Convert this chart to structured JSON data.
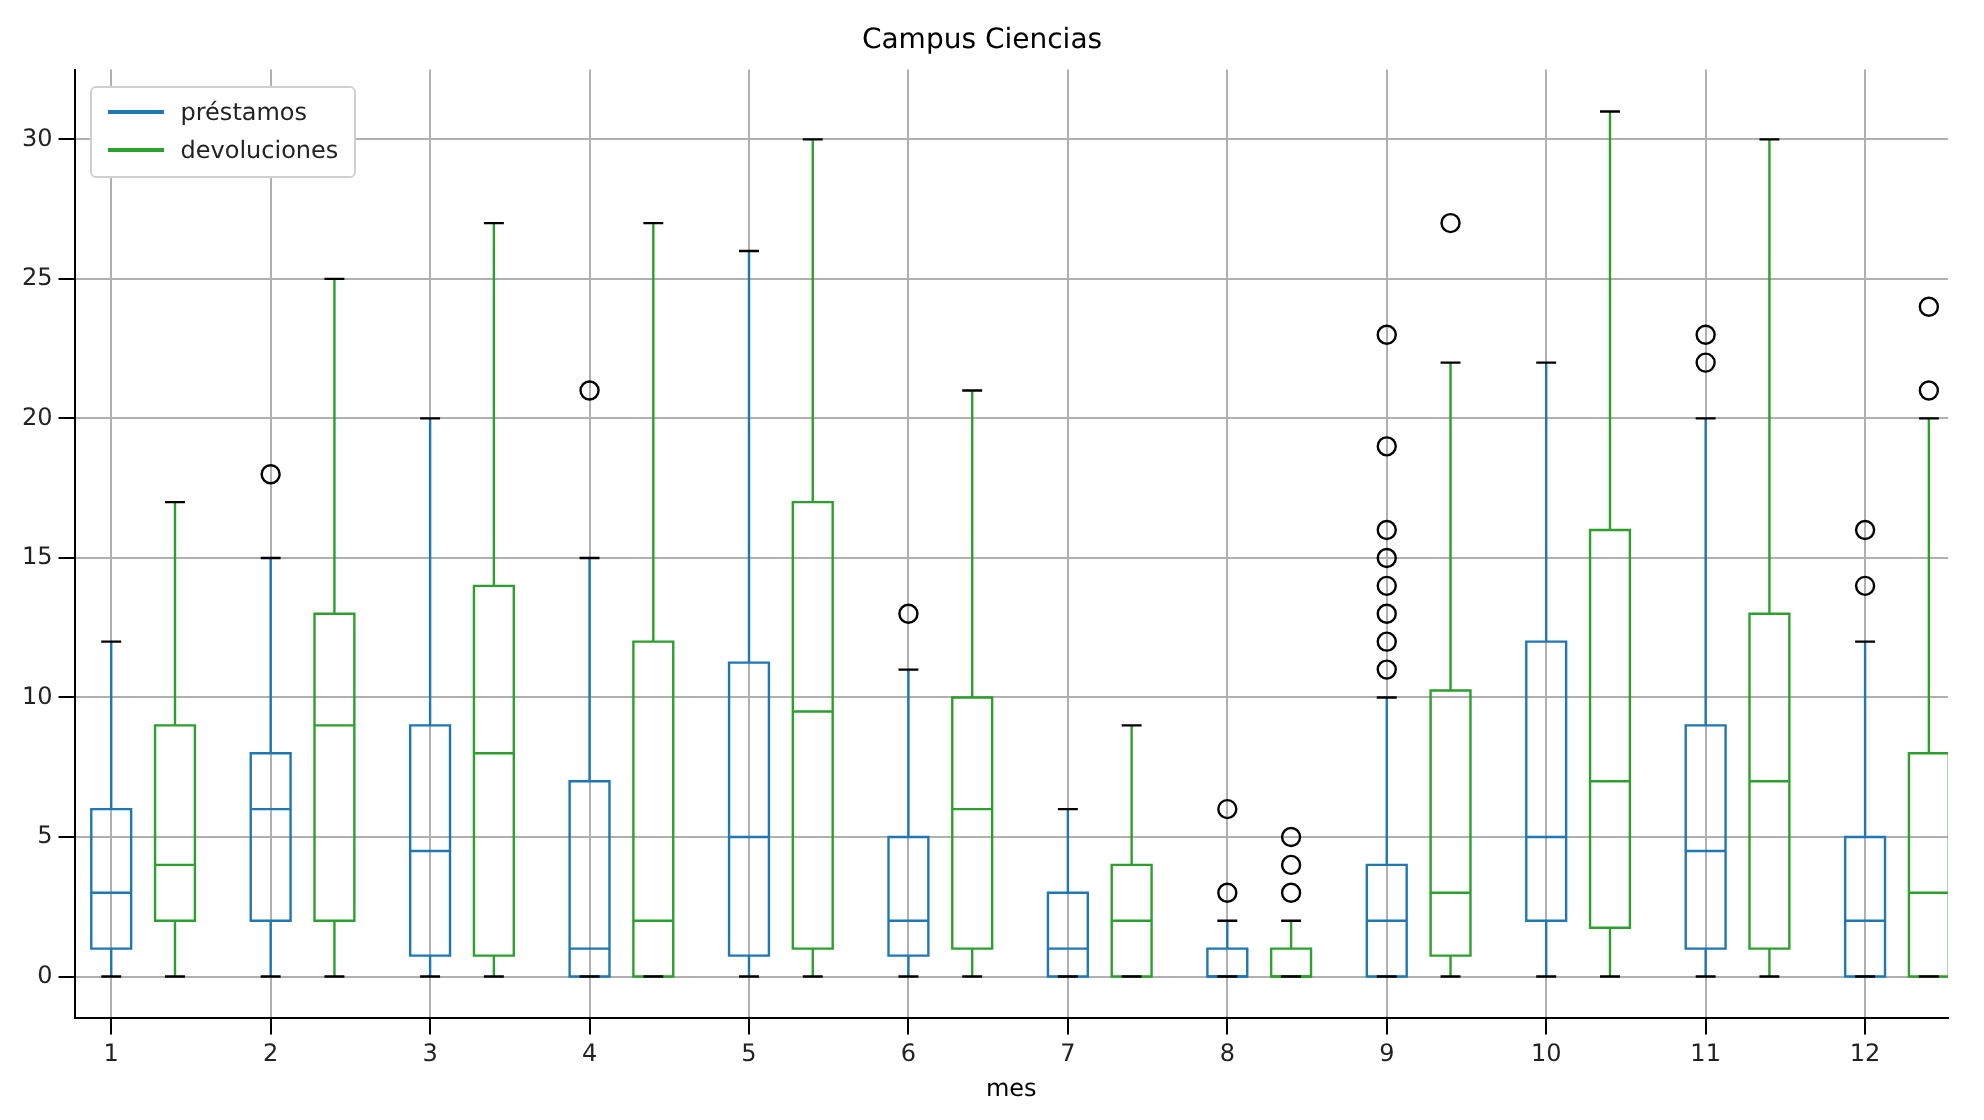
{
  "chart_data": {
    "type": "box",
    "title": "Campus Ciencias",
    "xlabel": "mes",
    "x": [
      1,
      2,
      3,
      4,
      5,
      6,
      7,
      8,
      9,
      10,
      11,
      12
    ],
    "xlim": [
      0.77,
      12.52
    ],
    "xticks": [
      1,
      2,
      3,
      4,
      5,
      6,
      7,
      8,
      9,
      10,
      11,
      12
    ],
    "ylim": [
      -1.5,
      32.5
    ],
    "yticks": [
      0,
      5,
      10,
      15,
      20,
      25,
      30
    ],
    "grid": true,
    "legend": "top left",
    "series": [
      {
        "name": "préstamos",
        "color": "#1f77b4",
        "boxes": [
          {
            "low": 0,
            "q1": 1,
            "median": 3,
            "q3": 6,
            "high": 12
          },
          {
            "low": 0,
            "q1": 2,
            "median": 6,
            "q3": 8,
            "high": 15,
            "outliers": [
              18
            ]
          },
          {
            "low": 0,
            "q1": 0.75,
            "median": 4.5,
            "q3": 9,
            "high": 20
          },
          {
            "low": 0,
            "q1": 0,
            "median": 1,
            "q3": 7,
            "high": 15,
            "outliers": [
              21
            ]
          },
          {
            "low": 0,
            "q1": 0.75,
            "median": 5,
            "q3": 11.25,
            "high": 26
          },
          {
            "low": 0,
            "q1": 0.75,
            "median": 2,
            "q3": 5,
            "high": 11,
            "outliers": [
              13
            ]
          },
          {
            "low": 0,
            "q1": 0,
            "median": 1,
            "q3": 3,
            "high": 6
          },
          {
            "low": 0,
            "q1": 0,
            "median": 0,
            "q3": 1,
            "high": 2,
            "outliers": [
              3,
              6
            ]
          },
          {
            "low": 0,
            "q1": 0,
            "median": 2,
            "q3": 4,
            "high": 10,
            "outliers": [
              11,
              12,
              13,
              14,
              15,
              16,
              19,
              23
            ]
          },
          {
            "low": 0,
            "q1": 2,
            "median": 5,
            "q3": 12,
            "high": 22
          },
          {
            "low": 0,
            "q1": 1,
            "median": 4.5,
            "q3": 9,
            "high": 20,
            "outliers": [
              22,
              23
            ]
          },
          {
            "low": 0,
            "q1": 0,
            "median": 2,
            "q3": 5,
            "high": 12,
            "outliers": [
              14,
              16
            ]
          }
        ]
      },
      {
        "name": "devoluciones",
        "color": "#2ca02c",
        "x": [
          1.4,
          2.4,
          3.4,
          4.4,
          5.4,
          6.4,
          7.4,
          8.4,
          9.4,
          10.4,
          11.4,
          12.4
        ],
        "boxes": [
          {
            "low": 0,
            "q1": 2,
            "median": 4,
            "q3": 9,
            "high": 17
          },
          {
            "low": 0,
            "q1": 2,
            "median": 9,
            "q3": 13,
            "high": 25
          },
          {
            "low": 0,
            "q1": 0.75,
            "median": 8,
            "q3": 14,
            "high": 27
          },
          {
            "low": 0,
            "q1": 0,
            "median": 2,
            "q3": 12,
            "high": 27
          },
          {
            "low": 0,
            "q1": 1,
            "median": 9.5,
            "q3": 17,
            "high": 30
          },
          {
            "low": 0,
            "q1": 1,
            "median": 6,
            "q3": 10,
            "high": 21
          },
          {
            "low": 0,
            "q1": 0,
            "median": 2,
            "q3": 4,
            "high": 9
          },
          {
            "low": 0,
            "q1": 0,
            "median": 0,
            "q3": 1,
            "high": 2,
            "outliers": [
              3,
              4,
              5
            ]
          },
          {
            "low": 0,
            "q1": 0.75,
            "median": 3,
            "q3": 10.25,
            "high": 22,
            "outliers": [
              27
            ]
          },
          {
            "low": 0,
            "q1": 1.75,
            "median": 7,
            "q3": 16,
            "high": 31
          },
          {
            "low": 0,
            "q1": 1,
            "median": 7,
            "q3": 13,
            "high": 30
          },
          {
            "low": 0,
            "q1": 0,
            "median": 3,
            "q3": 8,
            "high": 20,
            "outliers": [
              21,
              24
            ]
          }
        ]
      }
    ]
  }
}
